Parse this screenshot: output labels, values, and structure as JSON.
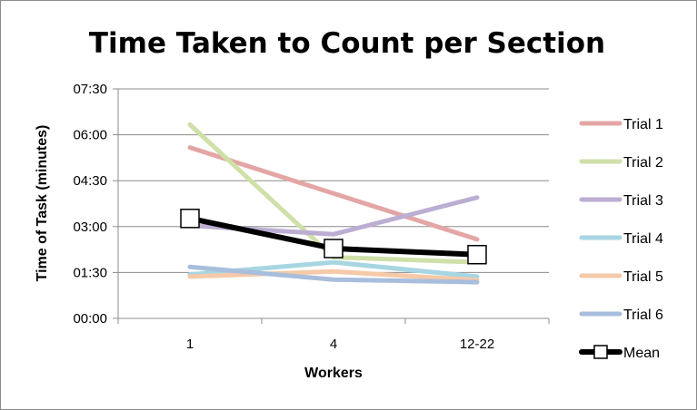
{
  "chart_data": {
    "type": "line",
    "title": "Time Taken to Count per Section",
    "xlabel": "Workers",
    "ylabel": "Time of Task (minutes)",
    "categories": [
      "1",
      "4",
      "12-22"
    ],
    "y_ticks": [
      "00:00",
      "01:30",
      "03:00",
      "04:30",
      "06:00",
      "07:30"
    ],
    "y_tick_values": [
      0,
      90,
      180,
      270,
      360,
      450
    ],
    "ylim": [
      0,
      450
    ],
    "grid": "horizontal",
    "legend_position": "right",
    "series": [
      {
        "name": "Trial 1",
        "color": "#e3a6a5",
        "values": [
          335,
          245,
          155
        ]
      },
      {
        "name": "Trial 2",
        "color": "#cfe0a8",
        "values": [
          380,
          120,
          110
        ]
      },
      {
        "name": "Trial 3",
        "color": "#bcaed3",
        "values": [
          182,
          165,
          237
        ]
      },
      {
        "name": "Trial 4",
        "color": "#a7d6e2",
        "values": [
          86,
          110,
          82
        ]
      },
      {
        "name": "Trial 5",
        "color": "#f6c9a8",
        "values": [
          82,
          92,
          75
        ]
      },
      {
        "name": "Trial 6",
        "color": "#a9bedc",
        "values": [
          101,
          76,
          71
        ]
      },
      {
        "name": "Mean",
        "color": "#000000",
        "values": [
          196,
          137,
          125
        ],
        "marker": "square"
      }
    ]
  }
}
